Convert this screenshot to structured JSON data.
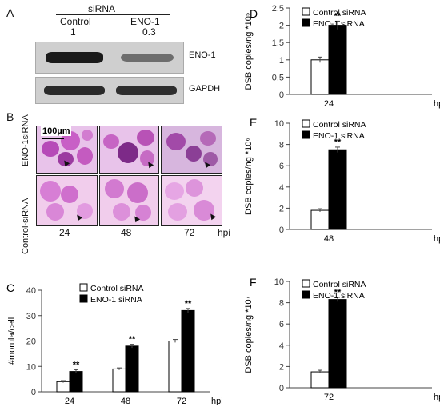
{
  "panelA": {
    "letter": "A",
    "sirna_header": "siRNA",
    "lanes": [
      "Control",
      "ENO-1"
    ],
    "ratios": [
      "1",
      "0.3"
    ],
    "blots": [
      {
        "label": "ENO-1"
      },
      {
        "label": "GAPDH"
      }
    ]
  },
  "panelB": {
    "letter": "B",
    "rows": [
      "ENO-1siRNA",
      "Control-siRNA"
    ],
    "scale": "100µm",
    "times": [
      "24",
      "48",
      "72"
    ],
    "unit": "hpi"
  },
  "colors": {
    "control": "#ffffff",
    "eno1": "#000000"
  },
  "chart_data": [
    {
      "letter": "C",
      "type": "bar",
      "categories": [
        "24",
        "48",
        "72"
      ],
      "series": [
        {
          "name": "Control siRNA",
          "values": [
            4,
            9,
            20
          ],
          "errors": [
            0.4,
            0.4,
            0.6
          ]
        },
        {
          "name": "ENO-1 siRNA",
          "values": [
            8,
            18,
            32
          ],
          "errors": [
            0.7,
            0.7,
            0.8
          ]
        }
      ],
      "significance": [
        "**",
        "**",
        "**"
      ],
      "xlabel": "hpi",
      "ylabel": "#morula/cell",
      "ylim": [
        0,
        40
      ],
      "yticks": [
        "0",
        "10",
        "20",
        "30",
        "40"
      ],
      "legend_position": "top-center"
    },
    {
      "letter": "D",
      "type": "bar",
      "categories": [
        "24"
      ],
      "series": [
        {
          "name": "Control siRNA",
          "values": [
            1.0
          ],
          "errors": [
            0.08
          ]
        },
        {
          "name": "ENO-1 siRNA",
          "values": [
            2.0
          ],
          "errors": [
            0.12
          ]
        }
      ],
      "significance": [
        "**"
      ],
      "xlabel": "hpi",
      "ylabel": "DSB copies/ng *10⁵",
      "ylim": [
        0,
        2.5
      ],
      "yticks": [
        "0",
        "0.5",
        "1",
        "1.5",
        "2",
        "2.5"
      ],
      "legend_position": "top-left"
    },
    {
      "letter": "E",
      "type": "bar",
      "categories": [
        "48"
      ],
      "series": [
        {
          "name": "Control siRNA",
          "values": [
            1.8
          ],
          "errors": [
            0.15
          ]
        },
        {
          "name": "ENO-1 siRNA",
          "values": [
            7.5
          ],
          "errors": [
            0.25
          ]
        }
      ],
      "significance": [
        "**"
      ],
      "xlabel": "hpi",
      "ylabel": "DSB copies/ng *10⁶",
      "ylim": [
        0,
        10
      ],
      "yticks": [
        "0",
        "2",
        "4",
        "6",
        "8",
        "10"
      ],
      "legend_position": "top-left"
    },
    {
      "letter": "F",
      "type": "bar",
      "categories": [
        "72"
      ],
      "series": [
        {
          "name": "Control siRNA",
          "values": [
            1.5
          ],
          "errors": [
            0.15
          ]
        },
        {
          "name": "ENO-1 siRNA",
          "values": [
            8.3
          ],
          "errors": [
            0.2
          ]
        }
      ],
      "significance": [
        "**"
      ],
      "xlabel": "hpi",
      "ylabel": "DSB copies/ng *10⁷",
      "ylim": [
        0,
        10
      ],
      "yticks": [
        "0",
        "2",
        "4",
        "6",
        "8",
        "10"
      ],
      "legend_position": "top-left"
    }
  ]
}
